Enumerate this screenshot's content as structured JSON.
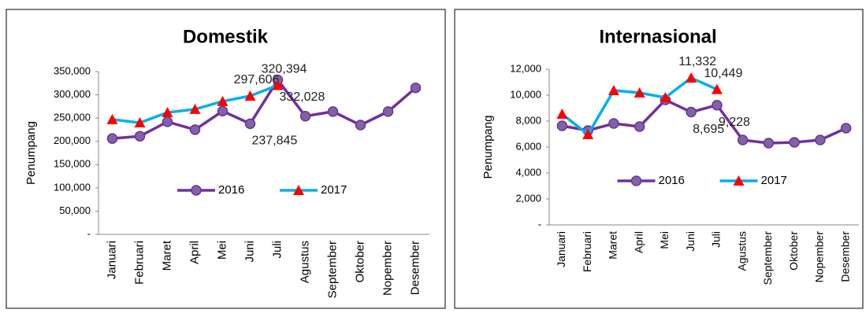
{
  "chart_data": [
    {
      "type": "line",
      "title": "Domestik",
      "y_label": "Penumpang",
      "categories": [
        "Januari",
        "Februari",
        "Maret",
        "April",
        "Mei",
        "Juni",
        "Juli",
        "Agustus",
        "September",
        "Oktober",
        "Nopember",
        "Desember"
      ],
      "ylim": [
        0,
        350000
      ],
      "yticks": [
        {
          "value": 0,
          "label": "-"
        },
        {
          "value": 50000,
          "label": "50,000"
        },
        {
          "value": 100000,
          "label": "100,000"
        },
        {
          "value": 150000,
          "label": "150,000"
        },
        {
          "value": 200000,
          "label": "200,000"
        },
        {
          "value": 250000,
          "label": "250,000"
        },
        {
          "value": 300000,
          "label": "300,000"
        },
        {
          "value": 350000,
          "label": "350,000"
        }
      ],
      "legend": "inside-bottom",
      "series": [
        {
          "name": "2016",
          "color": "#7030a0",
          "marker": "circle",
          "marker_color": "#8064a2",
          "values": [
            206000,
            211000,
            242000,
            225000,
            265000,
            237845,
            332028,
            254000,
            264000,
            235000,
            264000,
            315000
          ],
          "value_labels": [
            null,
            null,
            null,
            null,
            null,
            "237,845",
            "332,028",
            null,
            null,
            null,
            null,
            null
          ]
        },
        {
          "name": "2017",
          "color": "#00b0f0",
          "marker": "triangle",
          "marker_color": "#ff0000",
          "values": [
            247000,
            240000,
            262000,
            269000,
            286000,
            297606,
            320394,
            null,
            null,
            null,
            null,
            null
          ],
          "value_labels": [
            null,
            null,
            null,
            null,
            null,
            "297,606",
            "320,394",
            null,
            null,
            null,
            null,
            null
          ]
        }
      ]
    },
    {
      "type": "line",
      "title": "Internasional",
      "y_label": "Penumpang",
      "categories": [
        "Januari",
        "Februari",
        "Maret",
        "April",
        "Mei",
        "Juni",
        "Juli",
        "Agustus",
        "September",
        "Oktober",
        "Nopember",
        "Desember"
      ],
      "ylim": [
        0,
        12000
      ],
      "yticks": [
        {
          "value": 0,
          "label": "-"
        },
        {
          "value": 2000,
          "label": "2,000"
        },
        {
          "value": 4000,
          "label": "4,000"
        },
        {
          "value": 6000,
          "label": "6,000"
        },
        {
          "value": 8000,
          "label": "8,000"
        },
        {
          "value": 10000,
          "label": "10,000"
        },
        {
          "value": 12000,
          "label": "12,000"
        }
      ],
      "legend": "inside-bottom",
      "series": [
        {
          "name": "2016",
          "color": "#7030a0",
          "marker": "circle",
          "marker_color": "#8064a2",
          "values": [
            7636,
            7273,
            7818,
            7576,
            9636,
            8695,
            9228,
            6545,
            6303,
            6364,
            6545,
            7455
          ],
          "value_labels": [
            null,
            null,
            null,
            null,
            null,
            "8,695",
            "9,228",
            null,
            null,
            null,
            null,
            null
          ]
        },
        {
          "name": "2017",
          "color": "#00b0f0",
          "marker": "triangle",
          "marker_color": "#ff0000",
          "values": [
            8545,
            6970,
            10364,
            10182,
            9818,
            11332,
            10449,
            null,
            null,
            null,
            null,
            null
          ],
          "value_labels": [
            null,
            null,
            null,
            null,
            null,
            "11,332",
            "10,449",
            null,
            null,
            null,
            null,
            null
          ]
        }
      ]
    }
  ]
}
